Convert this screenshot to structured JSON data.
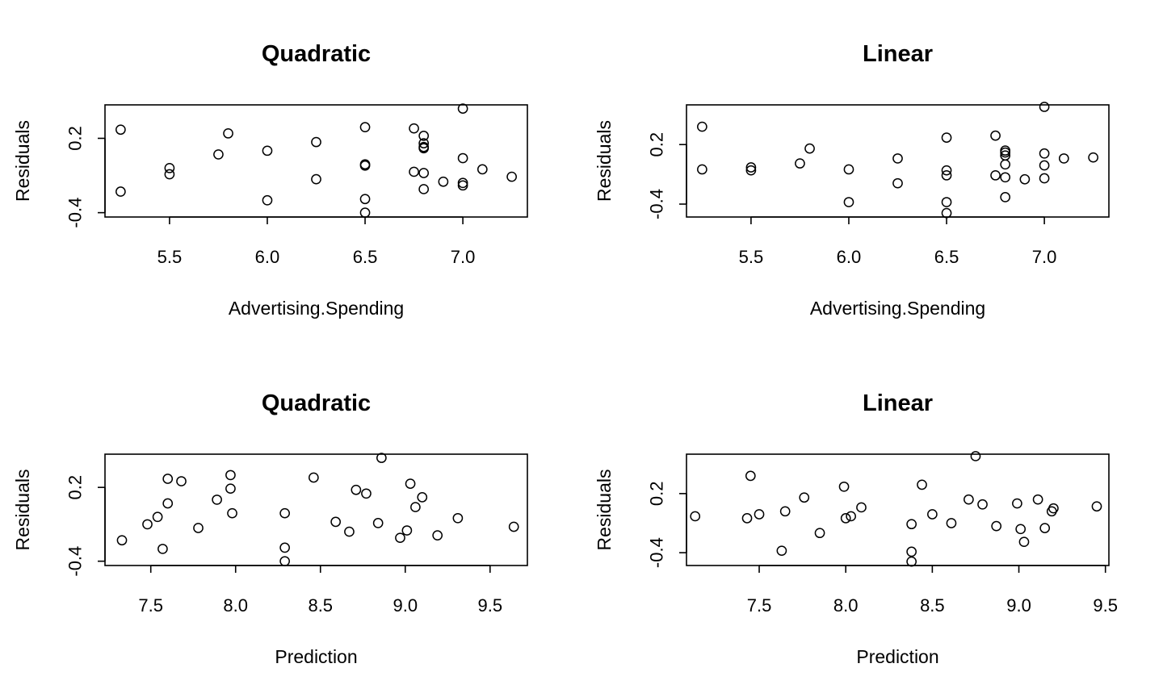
{
  "chart_data": [
    {
      "type": "scatter",
      "title": "Quadratic",
      "xlabel": "Advertising.Spending",
      "ylabel": "Residuals",
      "xlim": [
        5.17,
        7.33
      ],
      "ylim": [
        -0.435,
        0.47
      ],
      "xticks": [
        "5.5",
        "6.0",
        "6.5",
        "7.0"
      ],
      "yticks": [
        "-0.4",
        "0.2"
      ],
      "grid": false,
      "x": [
        5.25,
        5.25,
        5.5,
        5.5,
        5.75,
        5.8,
        6.0,
        6.0,
        6.25,
        6.25,
        6.5,
        6.5,
        6.5,
        6.5,
        6.5,
        6.75,
        6.75,
        6.8,
        6.8,
        6.8,
        6.8,
        6.8,
        6.8,
        6.9,
        7.0,
        7.0,
        7.0,
        7.0,
        7.1,
        7.25
      ],
      "y": [
        0.27,
        -0.23,
        -0.04,
        -0.09,
        0.07,
        0.24,
        0.1,
        -0.3,
        0.17,
        -0.13,
        0.29,
        -0.01,
        -0.02,
        -0.29,
        -0.4,
        0.28,
        -0.07,
        0.22,
        0.16,
        0.13,
        -0.08,
        -0.21,
        0.12,
        -0.15,
        0.44,
        0.04,
        -0.16,
        -0.18,
        -0.05,
        -0.11
      ]
    },
    {
      "type": "scatter",
      "title": "Linear",
      "xlabel": "Advertising.Spending",
      "ylabel": "Residuals",
      "xlim": [
        5.17,
        7.33
      ],
      "ylim": [
        -0.53,
        0.6
      ],
      "xticks": [
        "5.5",
        "6.0",
        "6.5",
        "7.0"
      ],
      "yticks": [
        "-0.4",
        "0.2"
      ],
      "grid": false,
      "x": [
        5.25,
        5.25,
        5.5,
        5.5,
        5.75,
        5.8,
        6.0,
        6.0,
        6.25,
        6.25,
        6.5,
        6.5,
        6.5,
        6.5,
        6.5,
        6.75,
        6.75,
        6.8,
        6.8,
        6.8,
        6.8,
        6.8,
        6.8,
        6.9,
        7.0,
        7.0,
        7.0,
        7.0,
        7.1,
        7.25
      ],
      "y": [
        0.38,
        -0.05,
        -0.03,
        -0.06,
        0.01,
        0.16,
        -0.05,
        -0.38,
        0.06,
        -0.19,
        0.27,
        -0.06,
        -0.11,
        -0.38,
        -0.49,
        0.29,
        -0.11,
        0.14,
        0.12,
        0.09,
        0.0,
        -0.13,
        -0.33,
        -0.15,
        0.58,
        0.11,
        -0.01,
        -0.14,
        0.06,
        0.07
      ]
    },
    {
      "type": "scatter",
      "title": "Quadratic",
      "xlabel": "Prediction",
      "ylabel": "Residuals",
      "xlim": [
        7.23,
        9.72
      ],
      "ylim": [
        -0.435,
        0.47
      ],
      "xticks": [
        "7.5",
        "8.0",
        "8.5",
        "9.0",
        "9.5"
      ],
      "yticks": [
        "-0.4",
        "0.2"
      ],
      "grid": false,
      "x": [
        7.33,
        7.48,
        7.54,
        7.57,
        7.6,
        7.6,
        7.68,
        7.78,
        7.89,
        7.97,
        7.97,
        7.98,
        8.29,
        8.29,
        8.29,
        8.46,
        8.59,
        8.67,
        8.71,
        8.77,
        8.84,
        8.86,
        8.97,
        9.01,
        9.03,
        9.06,
        9.1,
        9.19,
        9.31,
        9.64
      ],
      "y": [
        -0.23,
        -0.1,
        -0.04,
        -0.3,
        0.27,
        0.07,
        0.25,
        -0.13,
        0.1,
        0.3,
        0.19,
        -0.01,
        -0.29,
        -0.4,
        -0.01,
        0.28,
        -0.08,
        -0.16,
        0.18,
        0.15,
        -0.09,
        0.44,
        -0.21,
        -0.15,
        0.23,
        0.04,
        0.12,
        -0.19,
        -0.05,
        -0.12
      ]
    },
    {
      "type": "scatter",
      "title": "Linear",
      "xlabel": "Prediction",
      "ylabel": "Residuals",
      "xlim": [
        7.08,
        9.52
      ],
      "ylim": [
        -0.53,
        0.6
      ],
      "xticks": [
        "7.5",
        "8.0",
        "8.5",
        "9.0",
        "9.5"
      ],
      "yticks": [
        "-0.4",
        "0.2"
      ],
      "grid": false,
      "x": [
        7.13,
        7.43,
        7.45,
        7.5,
        7.63,
        7.65,
        7.76,
        7.85,
        7.99,
        8.0,
        8.03,
        8.09,
        8.38,
        8.38,
        8.38,
        8.44,
        8.5,
        8.61,
        8.71,
        8.75,
        8.79,
        8.87,
        8.99,
        9.01,
        9.03,
        9.11,
        9.15,
        9.19,
        9.2,
        9.45
      ],
      "y": [
        -0.03,
        -0.05,
        0.38,
        -0.01,
        -0.38,
        0.02,
        0.16,
        -0.2,
        0.27,
        -0.05,
        -0.03,
        0.06,
        -0.11,
        -0.39,
        -0.49,
        0.29,
        -0.01,
        -0.1,
        0.14,
        0.58,
        0.09,
        -0.13,
        0.1,
        -0.16,
        -0.29,
        0.14,
        -0.15,
        0.02,
        0.05,
        0.07
      ]
    }
  ]
}
